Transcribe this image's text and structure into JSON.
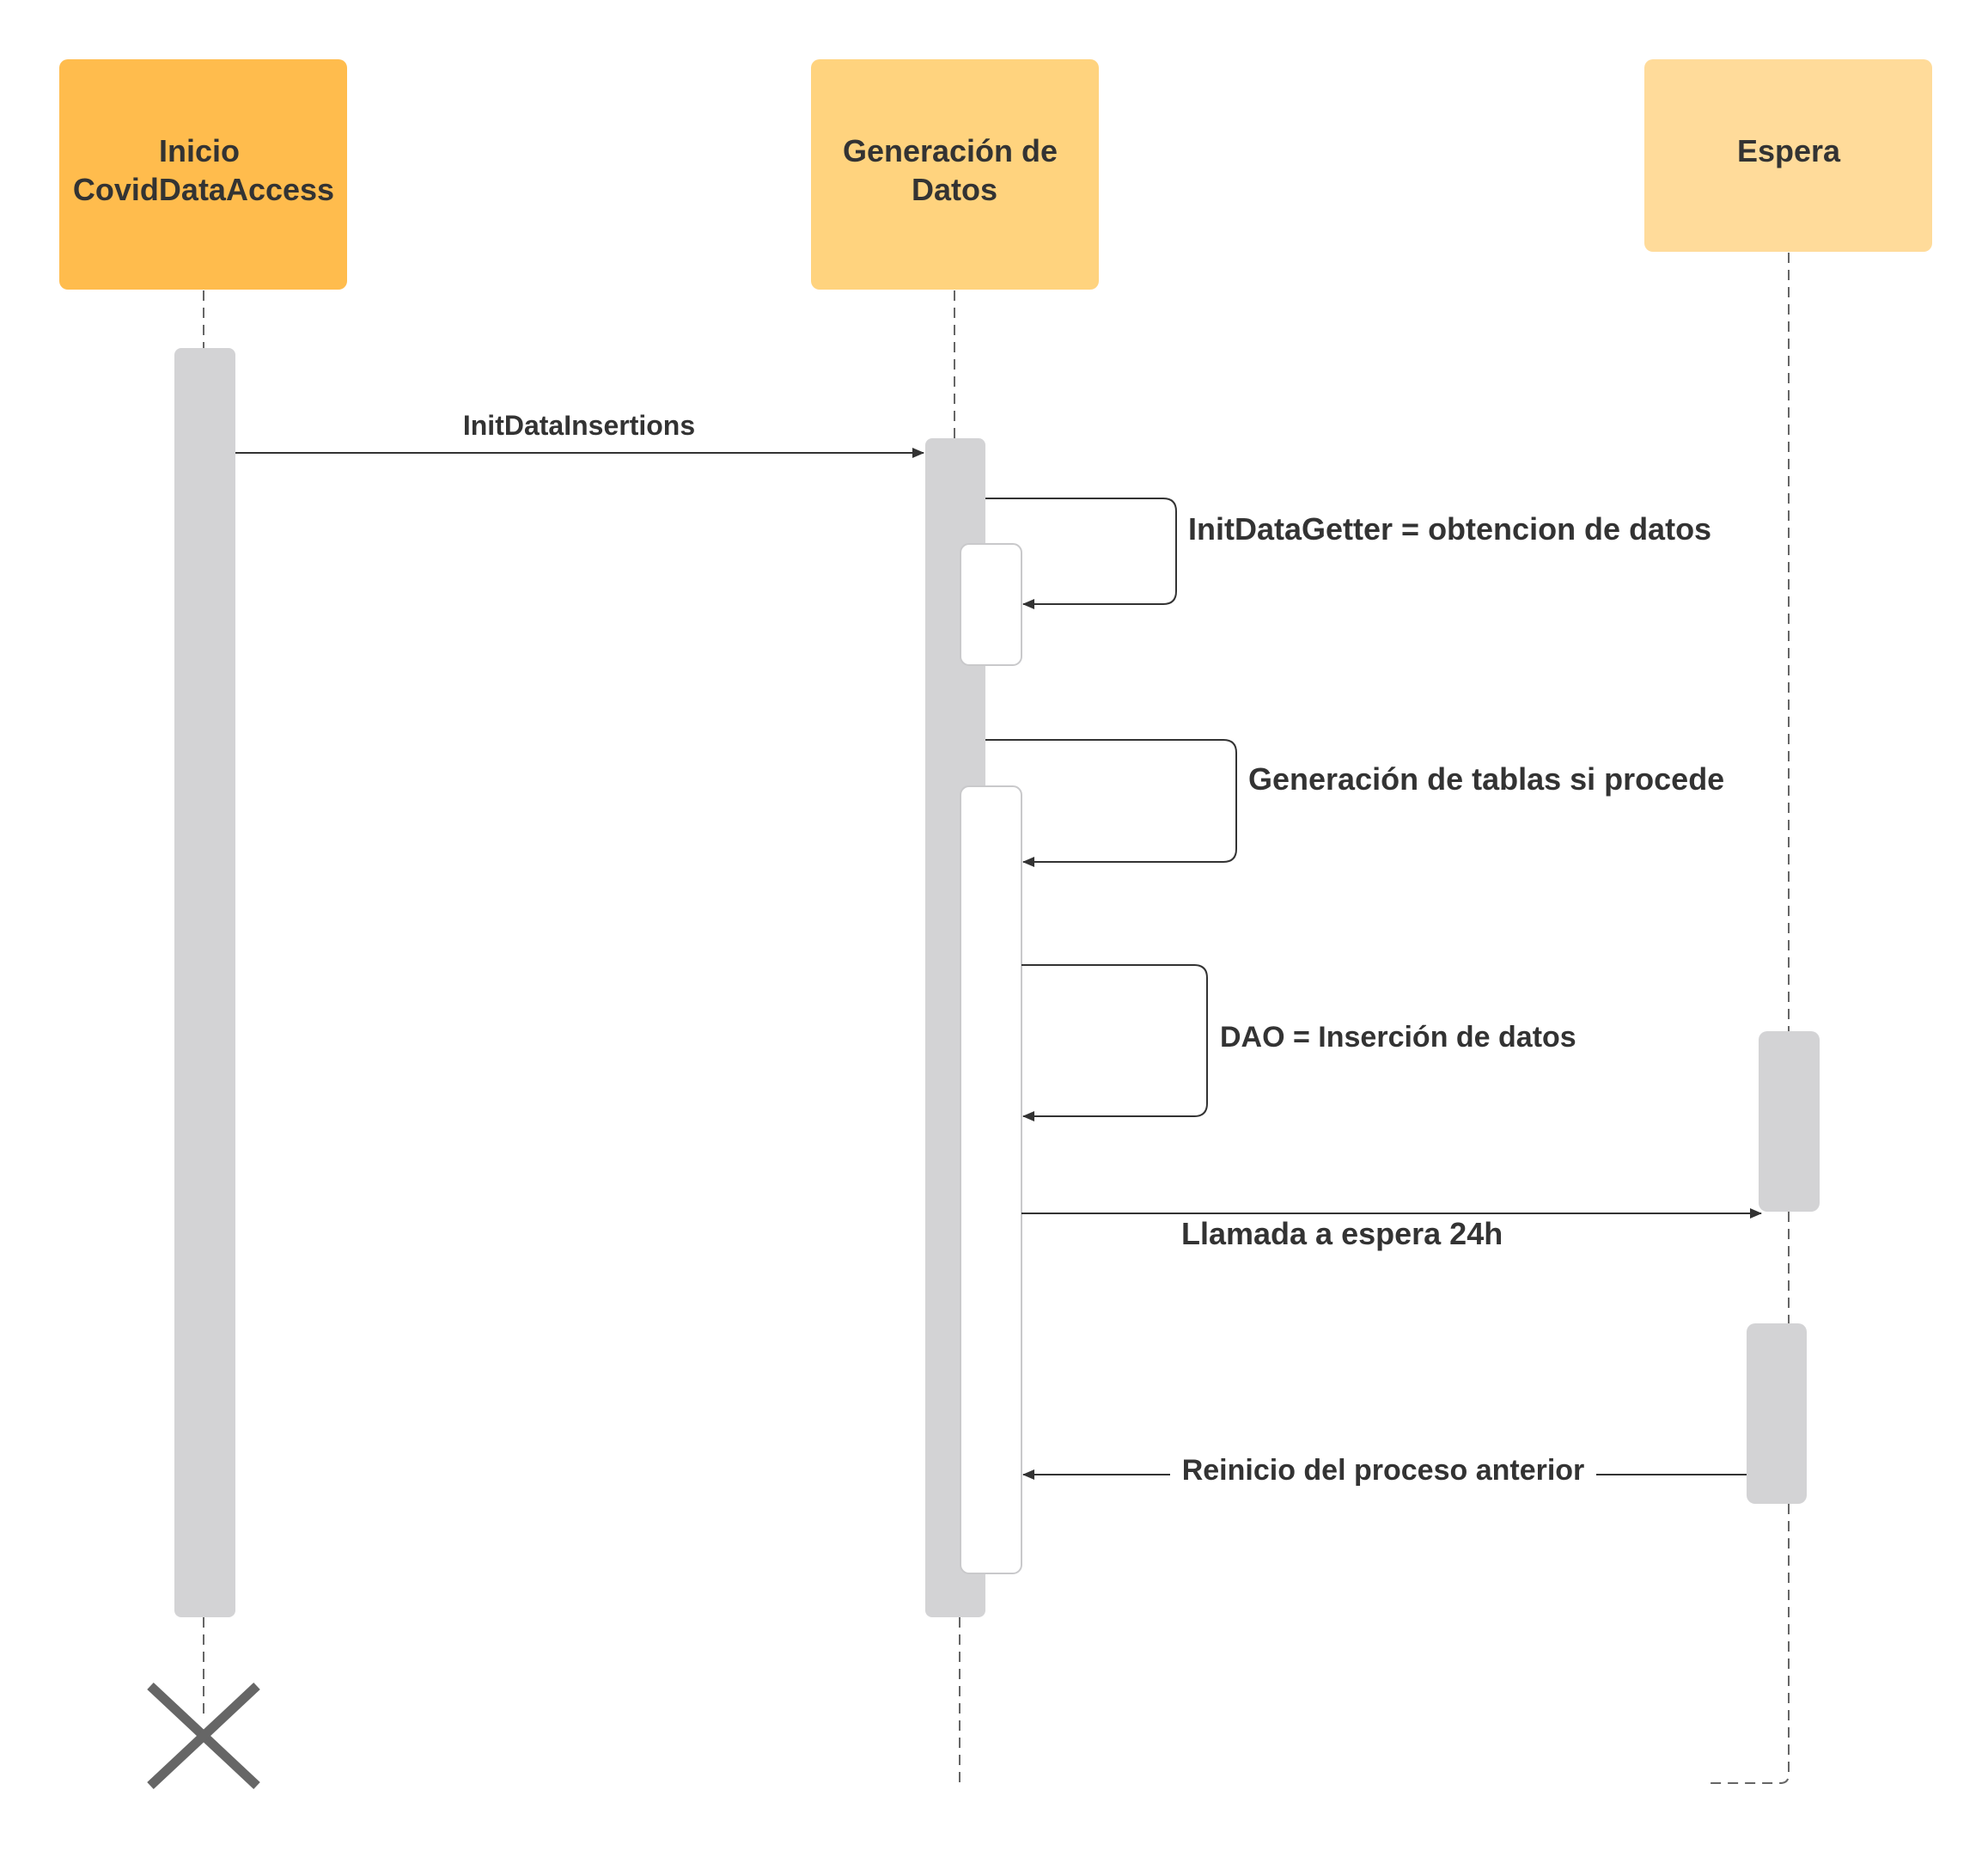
{
  "diagram": {
    "type": "sequence",
    "participants": [
      {
        "id": "inicio",
        "lines": [
          "Inicio",
          "CovidDataAccess"
        ],
        "color": "#FFBC4D"
      },
      {
        "id": "generacion",
        "lines": [
          "Generación de",
          "Datos"
        ],
        "color": "#FFD37E"
      },
      {
        "id": "espera",
        "lines": [
          "Espera"
        ],
        "color": "#FFDB9A"
      }
    ],
    "messages": [
      {
        "id": "init-data-insertions",
        "from": "inicio",
        "to": "generacion",
        "label": "InitDataInsertions"
      },
      {
        "id": "init-data-getter",
        "from": "generacion",
        "to": "generacion",
        "label": "InitDataGetter = obtencion de datos"
      },
      {
        "id": "generacion-tablas",
        "from": "generacion",
        "to": "generacion",
        "label": "Generación de tablas si procede"
      },
      {
        "id": "dao-insercion",
        "from": "generacion",
        "to": "generacion",
        "label": "DAO = Inserción de datos"
      },
      {
        "id": "llamada-espera",
        "from": "generacion",
        "to": "espera",
        "label": "Llamada a espera 24h"
      },
      {
        "id": "reinicio-proceso",
        "from": "espera",
        "to": "generacion",
        "label": "Reinicio del proceso anterior"
      }
    ],
    "destroyed_participant": "inicio",
    "colors": {
      "activation": "#D3D3D5",
      "line": "#333333",
      "lifeline": "#666666",
      "destroy_mark": "#666666",
      "text": "#333333"
    }
  }
}
